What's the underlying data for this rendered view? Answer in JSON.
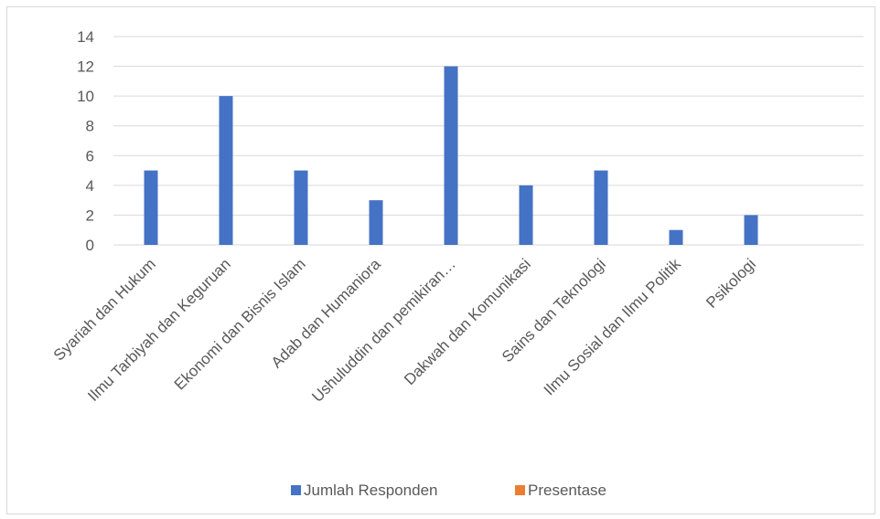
{
  "chart_data": {
    "type": "bar",
    "categories": [
      "Syariah dan Hukum",
      "Ilmu Tarbiyah dan Keguruan",
      "Ekonomi dan Bisnis Islam",
      "Adab dan Humaniora",
      "Ushuluddin dan pemikiran…",
      "Dakwah dan Komunikasi",
      "Sains dan Teknologi",
      "Ilmu Sosial dan   Ilmu Politik",
      "Psikologi",
      ""
    ],
    "series": [
      {
        "name": "Jumlah Responden",
        "color": "#4472c4",
        "values": [
          5,
          10,
          5,
          3,
          12,
          4,
          5,
          1,
          2,
          null
        ]
      },
      {
        "name": "Presentase",
        "color": "#ed7d31",
        "values": [
          null,
          null,
          null,
          null,
          null,
          null,
          null,
          null,
          null,
          null
        ]
      }
    ],
    "y_ticks": [
      0,
      2,
      4,
      6,
      8,
      10,
      12,
      14
    ],
    "ylim": [
      0,
      14
    ],
    "grid": true,
    "legend_position": "bottom",
    "title": "",
    "xlabel": "",
    "ylabel": ""
  }
}
